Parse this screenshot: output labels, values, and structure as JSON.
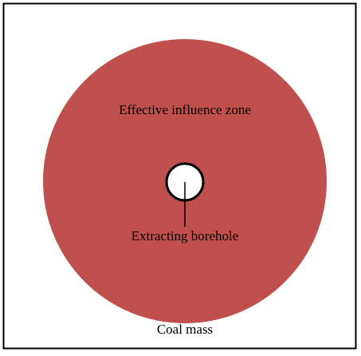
{
  "labels": {
    "zone": "Effective influence zone",
    "borehole": "Extracting borehole",
    "mass": "Coal mass"
  }
}
